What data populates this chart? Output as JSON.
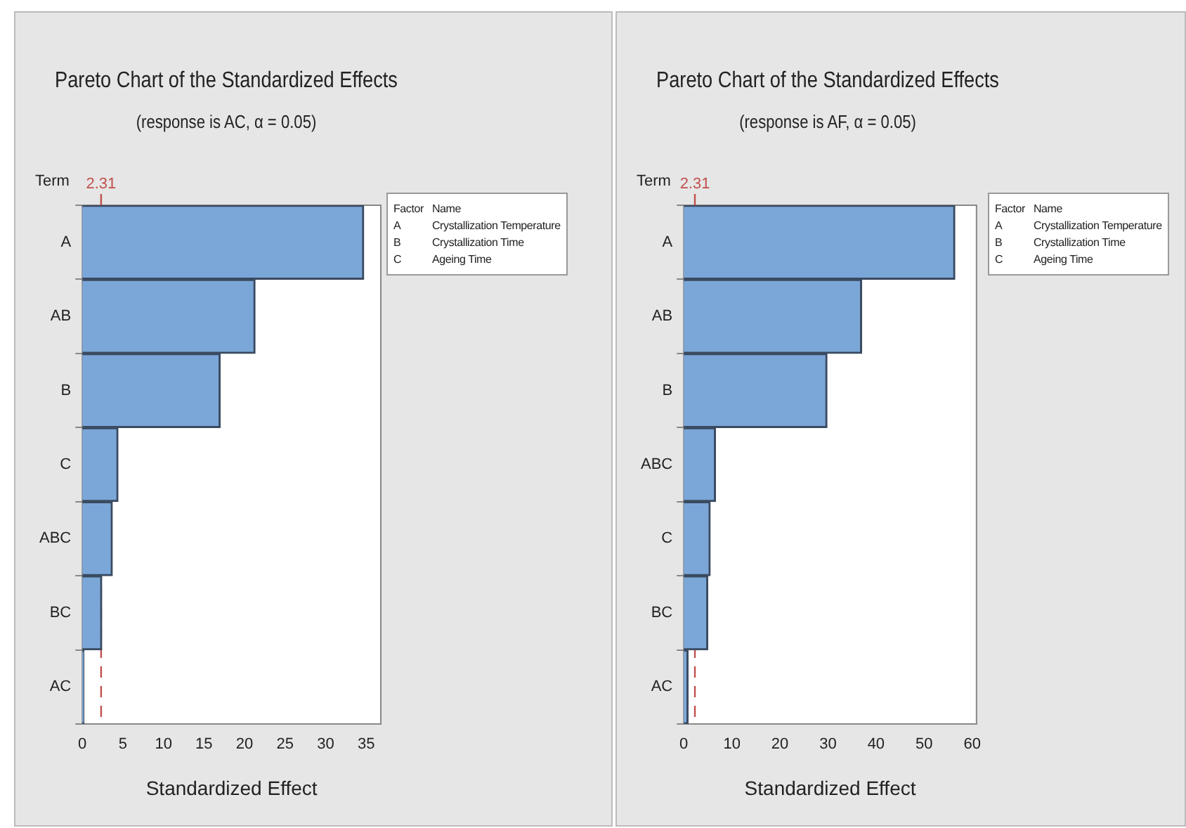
{
  "chart_data": [
    {
      "type": "bar",
      "orientation": "horizontal",
      "title": "Pareto Chart of the Standardized Effects",
      "subtitle": "(response is AC, α = 0.05)",
      "xlabel": "Standardized Effect",
      "ylabel": "Term",
      "categories": [
        "A",
        "AB",
        "B",
        "C",
        "ABC",
        "BC",
        "AC"
      ],
      "values": [
        34.7,
        21.3,
        17.0,
        4.4,
        3.7,
        2.4,
        0.2
      ],
      "color": "#7ba7d8",
      "xlim": [
        0,
        36.8
      ],
      "xticks": [
        0,
        5,
        10,
        15,
        20,
        25,
        30,
        35
      ],
      "grid": false,
      "legend": false,
      "ref_lines": [
        {
          "axis": "x",
          "value": 2.31,
          "label": "2.31",
          "color": "#c0504d",
          "line_style": "dashed"
        }
      ],
      "annotations": [
        "Factor",
        "Name",
        "A",
        "Crystallization Temperature",
        "B",
        "Crystallization Time",
        "C",
        "Ageing Time"
      ]
    },
    {
      "type": "bar",
      "orientation": "horizontal",
      "title": "Pareto Chart of the Standardized Effects",
      "subtitle": "(response is AF, α = 0.05)",
      "xlabel": "Standardized Effect",
      "ylabel": "Term",
      "categories": [
        "A",
        "AB",
        "B",
        "ABC",
        "C",
        "BC",
        "AC"
      ],
      "values": [
        56.4,
        37.0,
        29.8,
        6.6,
        5.5,
        5.0,
        0.9
      ],
      "color": "#7ba7d8",
      "xlim": [
        0,
        60.9
      ],
      "xticks": [
        0,
        10,
        20,
        30,
        40,
        50,
        60
      ],
      "grid": false,
      "legend": false,
      "ref_lines": [
        {
          "axis": "x",
          "value": 2.31,
          "label": "2.31",
          "color": "#c0504d",
          "line_style": "dashed"
        }
      ],
      "annotations": [
        "Factor",
        "Name",
        "A",
        "Crystallization Temperature",
        "B",
        "Crystallization Time",
        "C",
        "Ageing Time"
      ]
    }
  ]
}
